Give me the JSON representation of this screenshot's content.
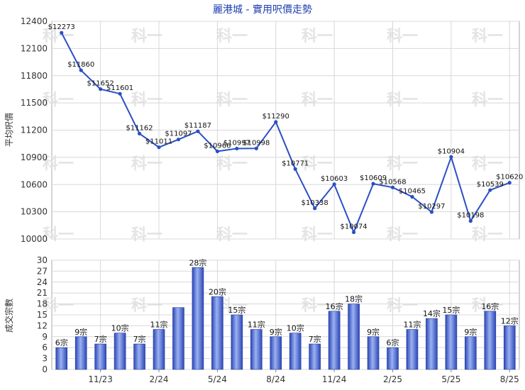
{
  "title": "麗港城 - 實用呎價走勢",
  "watermark": "科一",
  "colors": {
    "line": "#2a4fc4",
    "title": "#1f3fae",
    "grid": "#d8d8d8",
    "bar_dark": "#2c47b8",
    "bar_light": "#9bb1f0"
  },
  "chart_data": [
    {
      "type": "line",
      "ylabel": "平均呎價",
      "ylim": [
        10000,
        12400
      ],
      "yticks": [
        10000,
        10300,
        10600,
        10900,
        11200,
        11500,
        11800,
        12100,
        12400
      ],
      "grid": true,
      "values": [
        12273,
        11860,
        11652,
        11601,
        11162,
        11011,
        11097,
        11187,
        10966,
        10997,
        10998,
        11290,
        10771,
        10338,
        10603,
        10074,
        10609,
        10568,
        10465,
        10297,
        10904,
        10198,
        10539,
        10620
      ],
      "labels": [
        "$12273",
        "$11860",
        "$11652",
        "$11601",
        "$11162",
        "$11011",
        "$11097",
        "$11187",
        "$10966",
        "$10997",
        "$10998",
        "$11290",
        "$10771",
        "$10338",
        "$10603",
        "$10074",
        "$10609",
        "$10568",
        "$10465",
        "$10297",
        "$10904",
        "$10198",
        "$10539",
        "$10620"
      ]
    },
    {
      "type": "bar",
      "ylabel": "成交宗數",
      "ylim": [
        0,
        30
      ],
      "yticks": [
        0,
        3,
        6,
        9,
        12,
        15,
        18,
        21,
        24,
        27,
        30
      ],
      "grid": true,
      "values": [
        6,
        9,
        7,
        10,
        7,
        11,
        17,
        28,
        20,
        15,
        11,
        9,
        10,
        7,
        16,
        18,
        9,
        6,
        11,
        14,
        15,
        9,
        16,
        12
      ],
      "labels": [
        "6宗",
        "9宗",
        "7宗",
        "10宗",
        "7宗",
        "11宗",
        "",
        "28宗",
        "20宗",
        "15宗",
        "11宗",
        "9宗",
        "10宗",
        "7宗",
        "16宗",
        "18宗",
        "9宗",
        "6宗",
        "11宗",
        "14宗",
        "15宗",
        "9宗",
        "16宗",
        "12宗"
      ],
      "xticks": [
        "11/23",
        "2/24",
        "5/24",
        "8/24",
        "11/24",
        "2/25",
        "5/25",
        "8/25"
      ]
    }
  ]
}
